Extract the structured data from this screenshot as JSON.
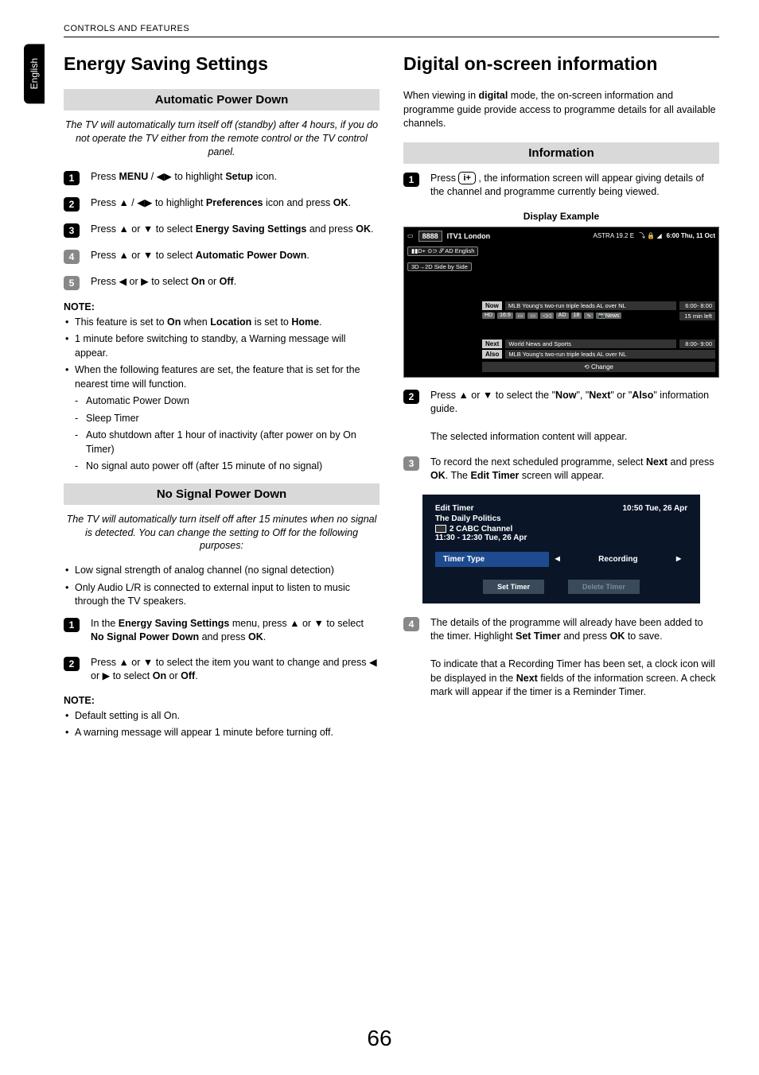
{
  "header": "CONTROLS AND FEATURES",
  "lang_tab": "English",
  "page_number": "66",
  "left": {
    "title": "Energy Saving Settings",
    "apd": {
      "bar": "Automatic Power Down",
      "intro": "The TV will automatically turn itself off (standby) after 4 hours, if you do not operate the TV either from the remote control or the TV control panel.",
      "steps": [
        "Press <b>MENU</b> / <span class='arrow'>◀▶</span> to highlight <b>Setup</b> icon.",
        "Press <span class='arrow'>▲</span> / <span class='arrow'>◀▶</span> to highlight <b>Preferences</b> icon and press <b>OK</b>.",
        "Press <span class='arrow'>▲</span> or <span class='arrow'>▼</span> to select <b>Energy Saving Settings</b> and press <b>OK</b>.",
        "Press <span class='arrow'>▲</span> or <span class='arrow'>▼</span> to select <b>Automatic Power Down</b>.",
        "Press <span class='arrow'>◀</span> or <span class='arrow'>▶</span> to select <b>On</b> or <b>Off</b>."
      ],
      "note_label": "NOTE:",
      "notes": [
        "This feature is set to <b>On</b> when <b>Location</b> is set to <b>Home</b>.",
        "1 minute before switching to standby, a Warning message will appear.",
        "When the following features are set, the feature that is set for the nearest time will function."
      ],
      "dashes": [
        "Automatic Power Down",
        "Sleep Timer",
        "Auto shutdown after 1 hour of inactivity (after power on by On Timer)",
        "No signal auto power off (after 15 minute of no signal)"
      ]
    },
    "nspd": {
      "bar": "No Signal Power Down",
      "intro": "The TV will automatically turn itself off after 15 minutes when no signal is detected. You can change the setting to Off for the following purposes:",
      "purposes": [
        "Low signal strength of analog channel (no signal detection)",
        "Only Audio L/R is connected to external input to listen to music through the TV speakers."
      ],
      "steps": [
        "In the <b>Energy Saving Settings</b> menu, press <span class='arrow'>▲</span> or <span class='arrow'>▼</span> to select <b>No Signal Power Down</b> and press <b>OK</b>.",
        "Press <span class='arrow'>▲</span> or <span class='arrow'>▼</span> to select the item you want to change and press <span class='arrow'>◀</span> or <span class='arrow'>▶</span> to select <b>On</b> or <b>Off</b>."
      ],
      "note_label": "NOTE:",
      "notes": [
        "Default setting is all On.",
        "A warning message will appear 1 minute before turning off."
      ]
    }
  },
  "right": {
    "title": "Digital on-screen information",
    "intro": "When viewing in <b>digital</b> mode, the on-screen information and programme guide provide access to programme details for all available channels.",
    "info": {
      "bar": "Information",
      "step1": "Press <span class='info-btn'>i+</span> , the information screen will appear giving details of the channel and programme currently being viewed.",
      "display_caption": "Display Example",
      "osd": {
        "chnum": "8888",
        "chname": "ITV1 London",
        "sat": "ASTRA 19.2 E",
        "icons": "⤵ 🔒 ◢",
        "date": "6:00 Thu, 11 Oct",
        "pills": [
          "▮▮D+  ⊙⊃  𝒮 AD English",
          "3D→2D  Side by Side"
        ],
        "rows": [
          {
            "tag": "Now",
            "prog": "MLB Young's two-run triple leads AL over NL",
            "right": "6:00- 8:00"
          },
          {
            "badges": [
              "HD",
              "16:9",
              "▭",
              "▭",
              "◁◁",
              "AD",
              "18",
              "∿",
              "📷News"
            ],
            "right": "15 min left"
          },
          {
            "spacer": true
          },
          {
            "tag": "Next",
            "prog": "World News and Sports",
            "right": "8:00- 9:00"
          },
          {
            "tag": "Also",
            "prog": "MLB Young's two-run triple leads AL over NL",
            "right": ""
          }
        ],
        "change": "⟲ Change"
      },
      "step2": "Press <span class='arrow'>▲</span> or <span class='arrow'>▼</span> to select the \"<b>Now</b>\", \"<b>Next</b>\" or \"<b>Also</b>\" information guide.",
      "step2b": "The selected information content will appear.",
      "step3": "To record the next scheduled programme, select <b>Next</b> and press <b>OK</b>. The <b>Edit Timer</b> screen will appear.",
      "edit_timer": {
        "title": "Edit Timer",
        "time": "10:50 Tue, 26 Apr",
        "prog": "The Daily Politics",
        "ch": "2 CABC Channel",
        "range": "11:30 - 12:30 Tue, 26 Apr",
        "type_label": "Timer Type",
        "type_value": "Recording",
        "set": "Set Timer",
        "delete": "Delete Timer"
      },
      "step4": "The details of the programme will already have been added to the timer. Highlight <b>Set Timer</b> and press <b>OK</b> to save.",
      "step4b": "To indicate that a Recording Timer has been set, a clock icon will be displayed in the <b>Next</b> fields of the information screen. A check mark will appear if the timer is a Reminder Timer."
    }
  }
}
